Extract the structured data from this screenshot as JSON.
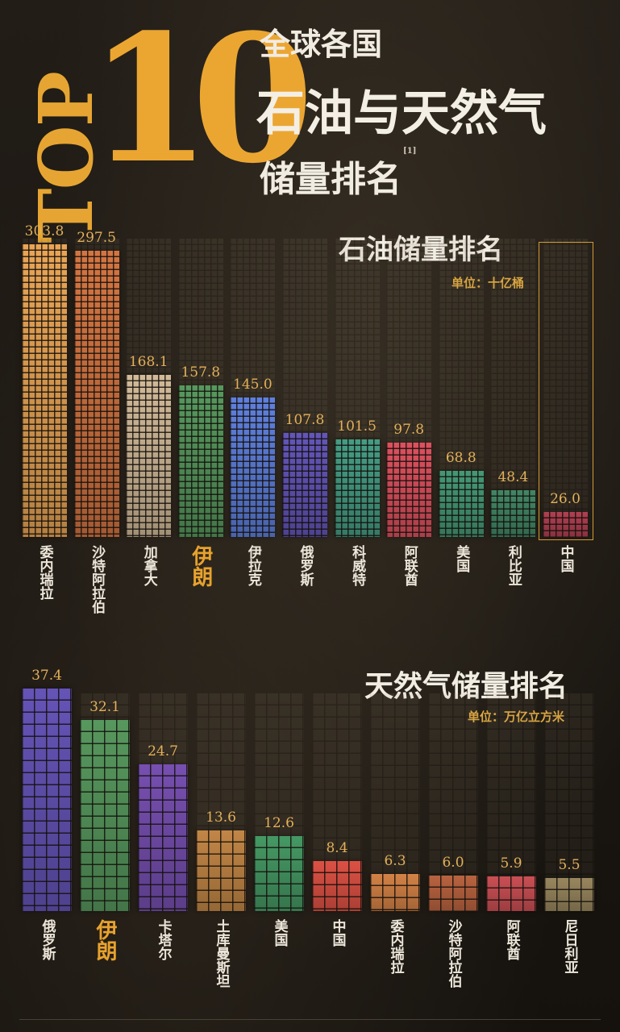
{
  "header": {
    "top_label": "TOP",
    "number": "10",
    "line1": "全球各国",
    "line2": "石油与天然气",
    "line3": "储量排名",
    "footnote": "[1]"
  },
  "colors": {
    "accent": "#e8a22d",
    "background": "#1a1612"
  },
  "chart_data": [
    {
      "type": "bar",
      "title": "石油储量排名",
      "unit": "单位：十亿桶",
      "categories": [
        "委内瑞拉",
        "沙特阿拉伯",
        "加拿大",
        "伊朗",
        "伊拉克",
        "俄罗斯",
        "科威特",
        "阿联酋",
        "美国",
        "利比亚",
        "中国"
      ],
      "values": [
        303.8,
        297.5,
        168.1,
        157.8,
        145.0,
        107.8,
        101.5,
        97.8,
        68.8,
        48.4,
        26.0
      ],
      "value_labels": [
        "303.8",
        "297.5",
        "168.1",
        "157.8",
        "145.0",
        "107.8",
        "101.5",
        "97.8",
        "68.8",
        "48.4",
        "26.0"
      ],
      "colors": [
        "#d4964e",
        "#c06a3c",
        "#bfa98b",
        "#4f8a55",
        "#5674c9",
        "#5a4ea8",
        "#3f8e78",
        "#c84a56",
        "#3f8a6a",
        "#3c7a5c",
        "#a03a4a"
      ],
      "highlight": [
        "伊朗",
        "中国"
      ],
      "ylim": [
        0,
        310
      ]
    },
    {
      "type": "bar",
      "title": "天然气储量排名",
      "unit": "单位：万亿立方米",
      "categories": [
        "俄罗斯",
        "伊朗",
        "卡塔尔",
        "土库曼斯坦",
        "美国",
        "中国",
        "委内瑞拉",
        "沙特阿拉伯",
        "阿联酋",
        "尼日利亚"
      ],
      "values": [
        37.4,
        32.1,
        24.7,
        13.6,
        12.6,
        8.4,
        6.3,
        6.0,
        5.9,
        5.5
      ],
      "value_labels": [
        "37.4",
        "32.1",
        "24.7",
        "13.6",
        "12.6",
        "8.4",
        "6.3",
        "6.0",
        "5.9",
        "5.5"
      ],
      "colors": [
        "#5c4ca6",
        "#4f8a55",
        "#6b48a0",
        "#b07a40",
        "#3f8a5a",
        "#c84a3e",
        "#c07640",
        "#a85a3a",
        "#b8484c",
        "#8a7a55"
      ],
      "highlight": [
        "伊朗"
      ],
      "ylim": [
        0,
        38
      ]
    }
  ]
}
